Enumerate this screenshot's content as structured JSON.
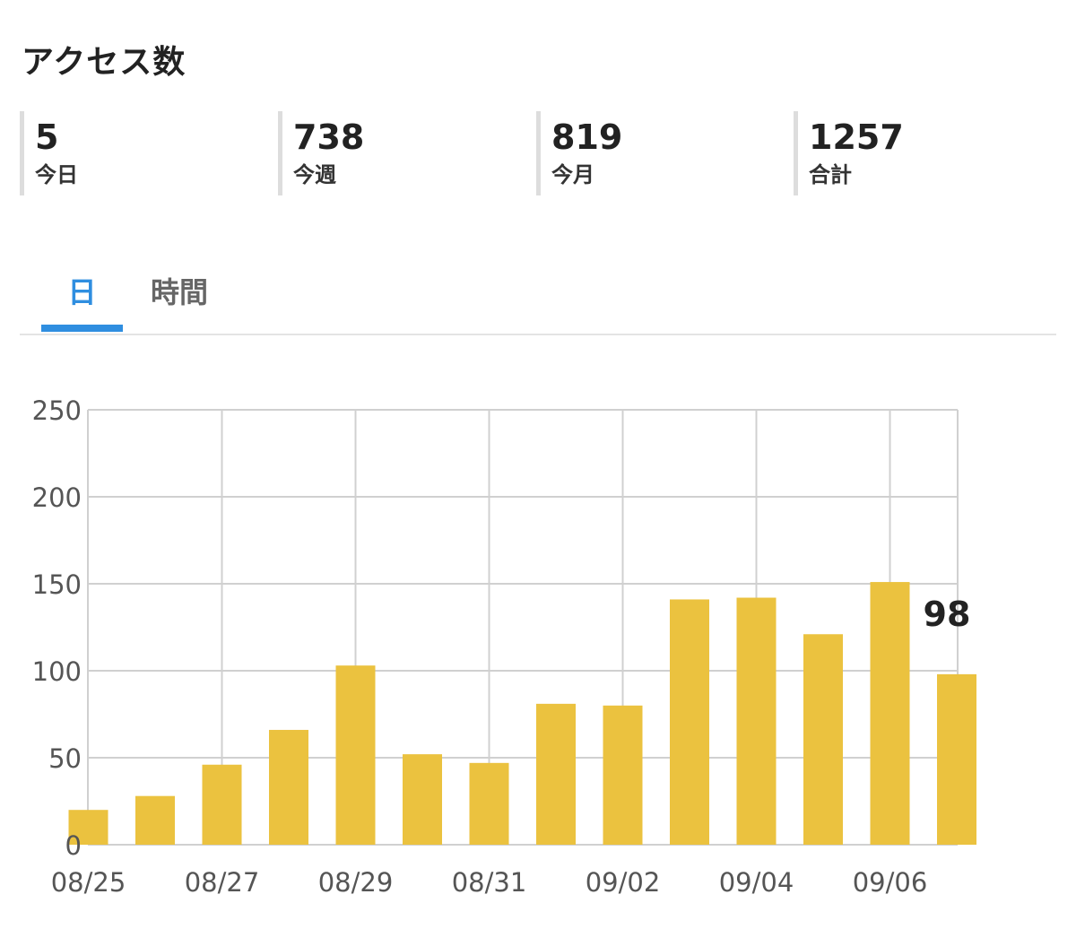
{
  "header": {
    "title": "アクセス数"
  },
  "stats": [
    {
      "value": "5",
      "label": "今日"
    },
    {
      "value": "738",
      "label": "今週"
    },
    {
      "value": "819",
      "label": "今月"
    },
    {
      "value": "1257",
      "label": "合計"
    }
  ],
  "tabs": [
    {
      "label": "日",
      "active": true
    },
    {
      "label": "時間",
      "active": false
    }
  ],
  "colors": {
    "accent": "#2f8ee0",
    "bar": "#ebc23f",
    "grid": "#d0d0d0"
  },
  "chart_data": {
    "type": "bar",
    "categories": [
      "08/25",
      "08/26",
      "08/27",
      "08/28",
      "08/29",
      "08/30",
      "08/31",
      "09/01",
      "09/02",
      "09/03",
      "09/04",
      "09/05",
      "09/06",
      "09/07"
    ],
    "values": [
      20,
      28,
      46,
      66,
      103,
      52,
      47,
      81,
      80,
      141,
      142,
      121,
      151,
      98
    ],
    "x_tick_labels": [
      "08/25",
      "08/27",
      "08/29",
      "08/31",
      "09/02",
      "09/04",
      "09/06"
    ],
    "y_ticks": [
      "0",
      "50",
      "100",
      "150",
      "200",
      "250"
    ],
    "ylim": [
      0,
      250
    ],
    "grid": true,
    "data_labels": [
      {
        "category": "09/07",
        "text": "98"
      }
    ],
    "title": "",
    "xlabel": "",
    "ylabel": ""
  }
}
